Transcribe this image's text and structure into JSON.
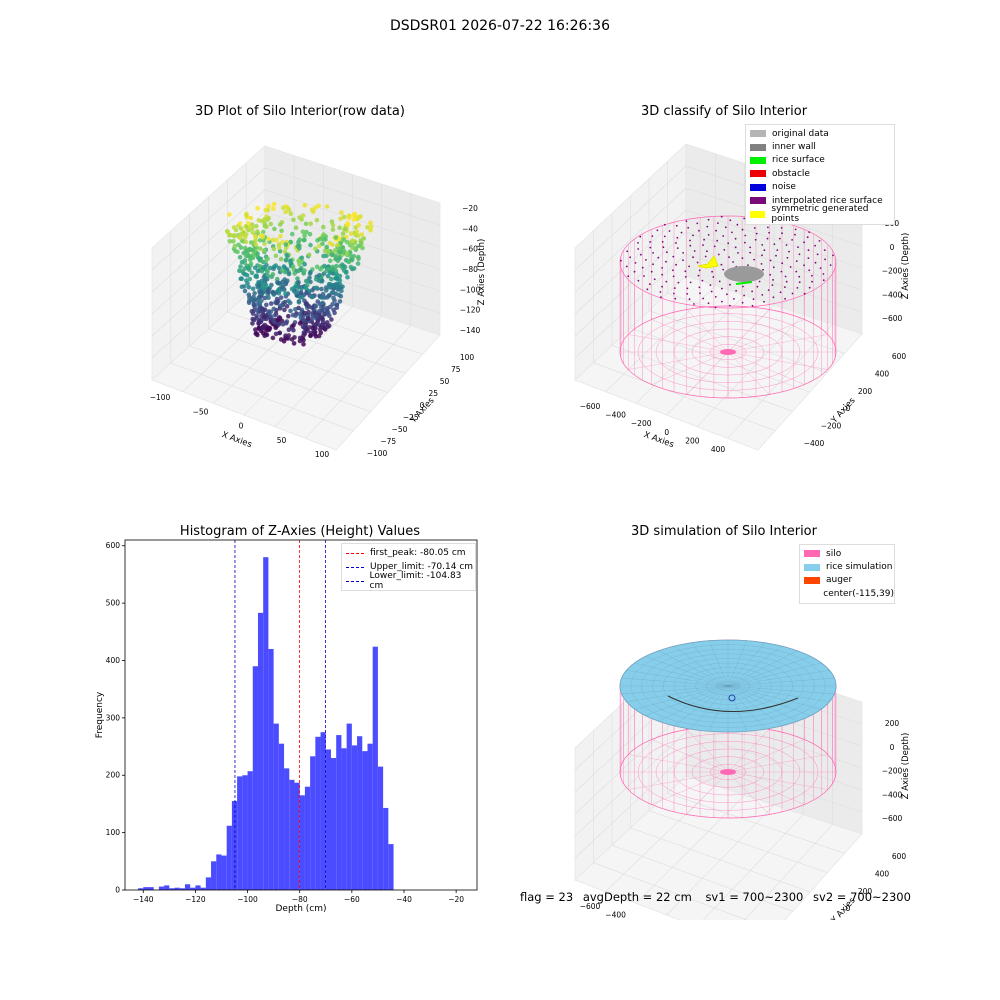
{
  "suptitle": "DSDSR01 2026-07-22 16:26:36",
  "panels": {
    "raw": {
      "title": "3D Plot of Silo Interior(row data)",
      "xlabel": "X Axies",
      "ylabel": "Y Axies",
      "zlabel": "Z Axies (Depth)",
      "xticks": [
        "−100",
        "−50",
        "0",
        "50",
        "100"
      ],
      "yticks": [
        "100",
        "75",
        "50",
        "25",
        "0",
        "−25",
        "−50",
        "−75",
        "−100"
      ],
      "zticks": [
        "−20",
        "−40",
        "−60",
        "−80",
        "−100",
        "−120",
        "−140"
      ]
    },
    "classify": {
      "title": "3D classify of Silo Interior",
      "xlabel": "X Axies",
      "ylabel": "Y Axies",
      "zlabel": "Z Axies (Depth)",
      "xticks": [
        "−600",
        "−400",
        "−200",
        "0",
        "200",
        "400"
      ],
      "yticks": [
        "600",
        "400",
        "200",
        "0",
        "−200",
        "−400"
      ],
      "zticks": [
        "200",
        "0",
        "−200",
        "−400",
        "−600"
      ],
      "legend": [
        {
          "label": "original data",
          "color": "#b4b4b4"
        },
        {
          "label": "inner wall",
          "color": "#808080"
        },
        {
          "label": "rice surface",
          "color": "#00ee00"
        },
        {
          "label": "obstacle",
          "color": "#ee0000"
        },
        {
          "label": "noise",
          "color": "#0000dd"
        },
        {
          "label": "interpolated rice surface",
          "color": "#7a0a7a"
        },
        {
          "label": "symmetric generated points",
          "color": "#ffff00"
        }
      ]
    },
    "hist": {
      "title": "Histogram of Z-Axies (Height) Values",
      "xlabel": "Depth (cm)",
      "ylabel": "Frequency",
      "legend": [
        {
          "label": "first_peak: -80.05 cm",
          "color": "#ff0000"
        },
        {
          "label": "Upper_limit: -70.14 cm",
          "color": "#0000cc"
        },
        {
          "label": "Lower_limit: -104.83 cm",
          "color": "#0000cc"
        }
      ]
    },
    "sim": {
      "title": "3D simulation of Silo Interior",
      "xlabel": "X Axies",
      "ylabel": "Y Axies",
      "zlabel": "Z Axies (Depth)",
      "xticks": [
        "−600",
        "−400",
        "−200",
        "0",
        "200",
        "400"
      ],
      "yticks": [
        "600",
        "400",
        "200",
        "0",
        "−200",
        "−400"
      ],
      "zticks": [
        "200",
        "0",
        "−200",
        "−400",
        "−600"
      ],
      "legend": [
        {
          "label": "silo",
          "color": "#ff69b4"
        },
        {
          "label": "rice simulation",
          "color": "#87ceeb"
        },
        {
          "label": "auger",
          "color": "#ff4500"
        },
        {
          "label": "center(-115,39)",
          "color": ""
        }
      ]
    }
  },
  "footer": {
    "flag": "flag = 23",
    "avg": "avgDepth = 22 cm",
    "sv1": "sv1 = 700~2300",
    "sv2": "sv2 = 700~2300"
  },
  "chart_data": {
    "type": "bar",
    "title": "Histogram of Z-Axies (Height) Values",
    "xlabel": "Depth (cm)",
    "ylabel": "Frequency",
    "xlim": [
      -147,
      -12
    ],
    "ylim": [
      0,
      610
    ],
    "xticks": [
      -140,
      -120,
      -100,
      -80,
      -60,
      -40,
      -20
    ],
    "yticks": [
      0,
      100,
      200,
      300,
      400,
      500,
      600
    ],
    "bin_width": 2,
    "bin_start": -142,
    "values": [
      3,
      5,
      5,
      0,
      6,
      8,
      3,
      4,
      3,
      10,
      4,
      8,
      4,
      22,
      50,
      62,
      60,
      112,
      155,
      198,
      200,
      207,
      390,
      483,
      580,
      420,
      290,
      255,
      212,
      192,
      187,
      165,
      180,
      233,
      267,
      275,
      245,
      230,
      270,
      247,
      290,
      252,
      268,
      242,
      255,
      424,
      215,
      143,
      80
    ],
    "series": [
      {
        "name": "",
        "values": []
      }
    ],
    "vlines": [
      {
        "label": "first_peak: -80.05 cm",
        "x": -80.05,
        "color": "#ff0000"
      },
      {
        "label": "Upper_limit: -70.14 cm",
        "x": -70.14,
        "color": "#0000cc"
      },
      {
        "label": "Lower_limit: -104.83 cm",
        "x": -104.83,
        "color": "#0000cc"
      }
    ],
    "bar_color": "#4b4bff"
  }
}
